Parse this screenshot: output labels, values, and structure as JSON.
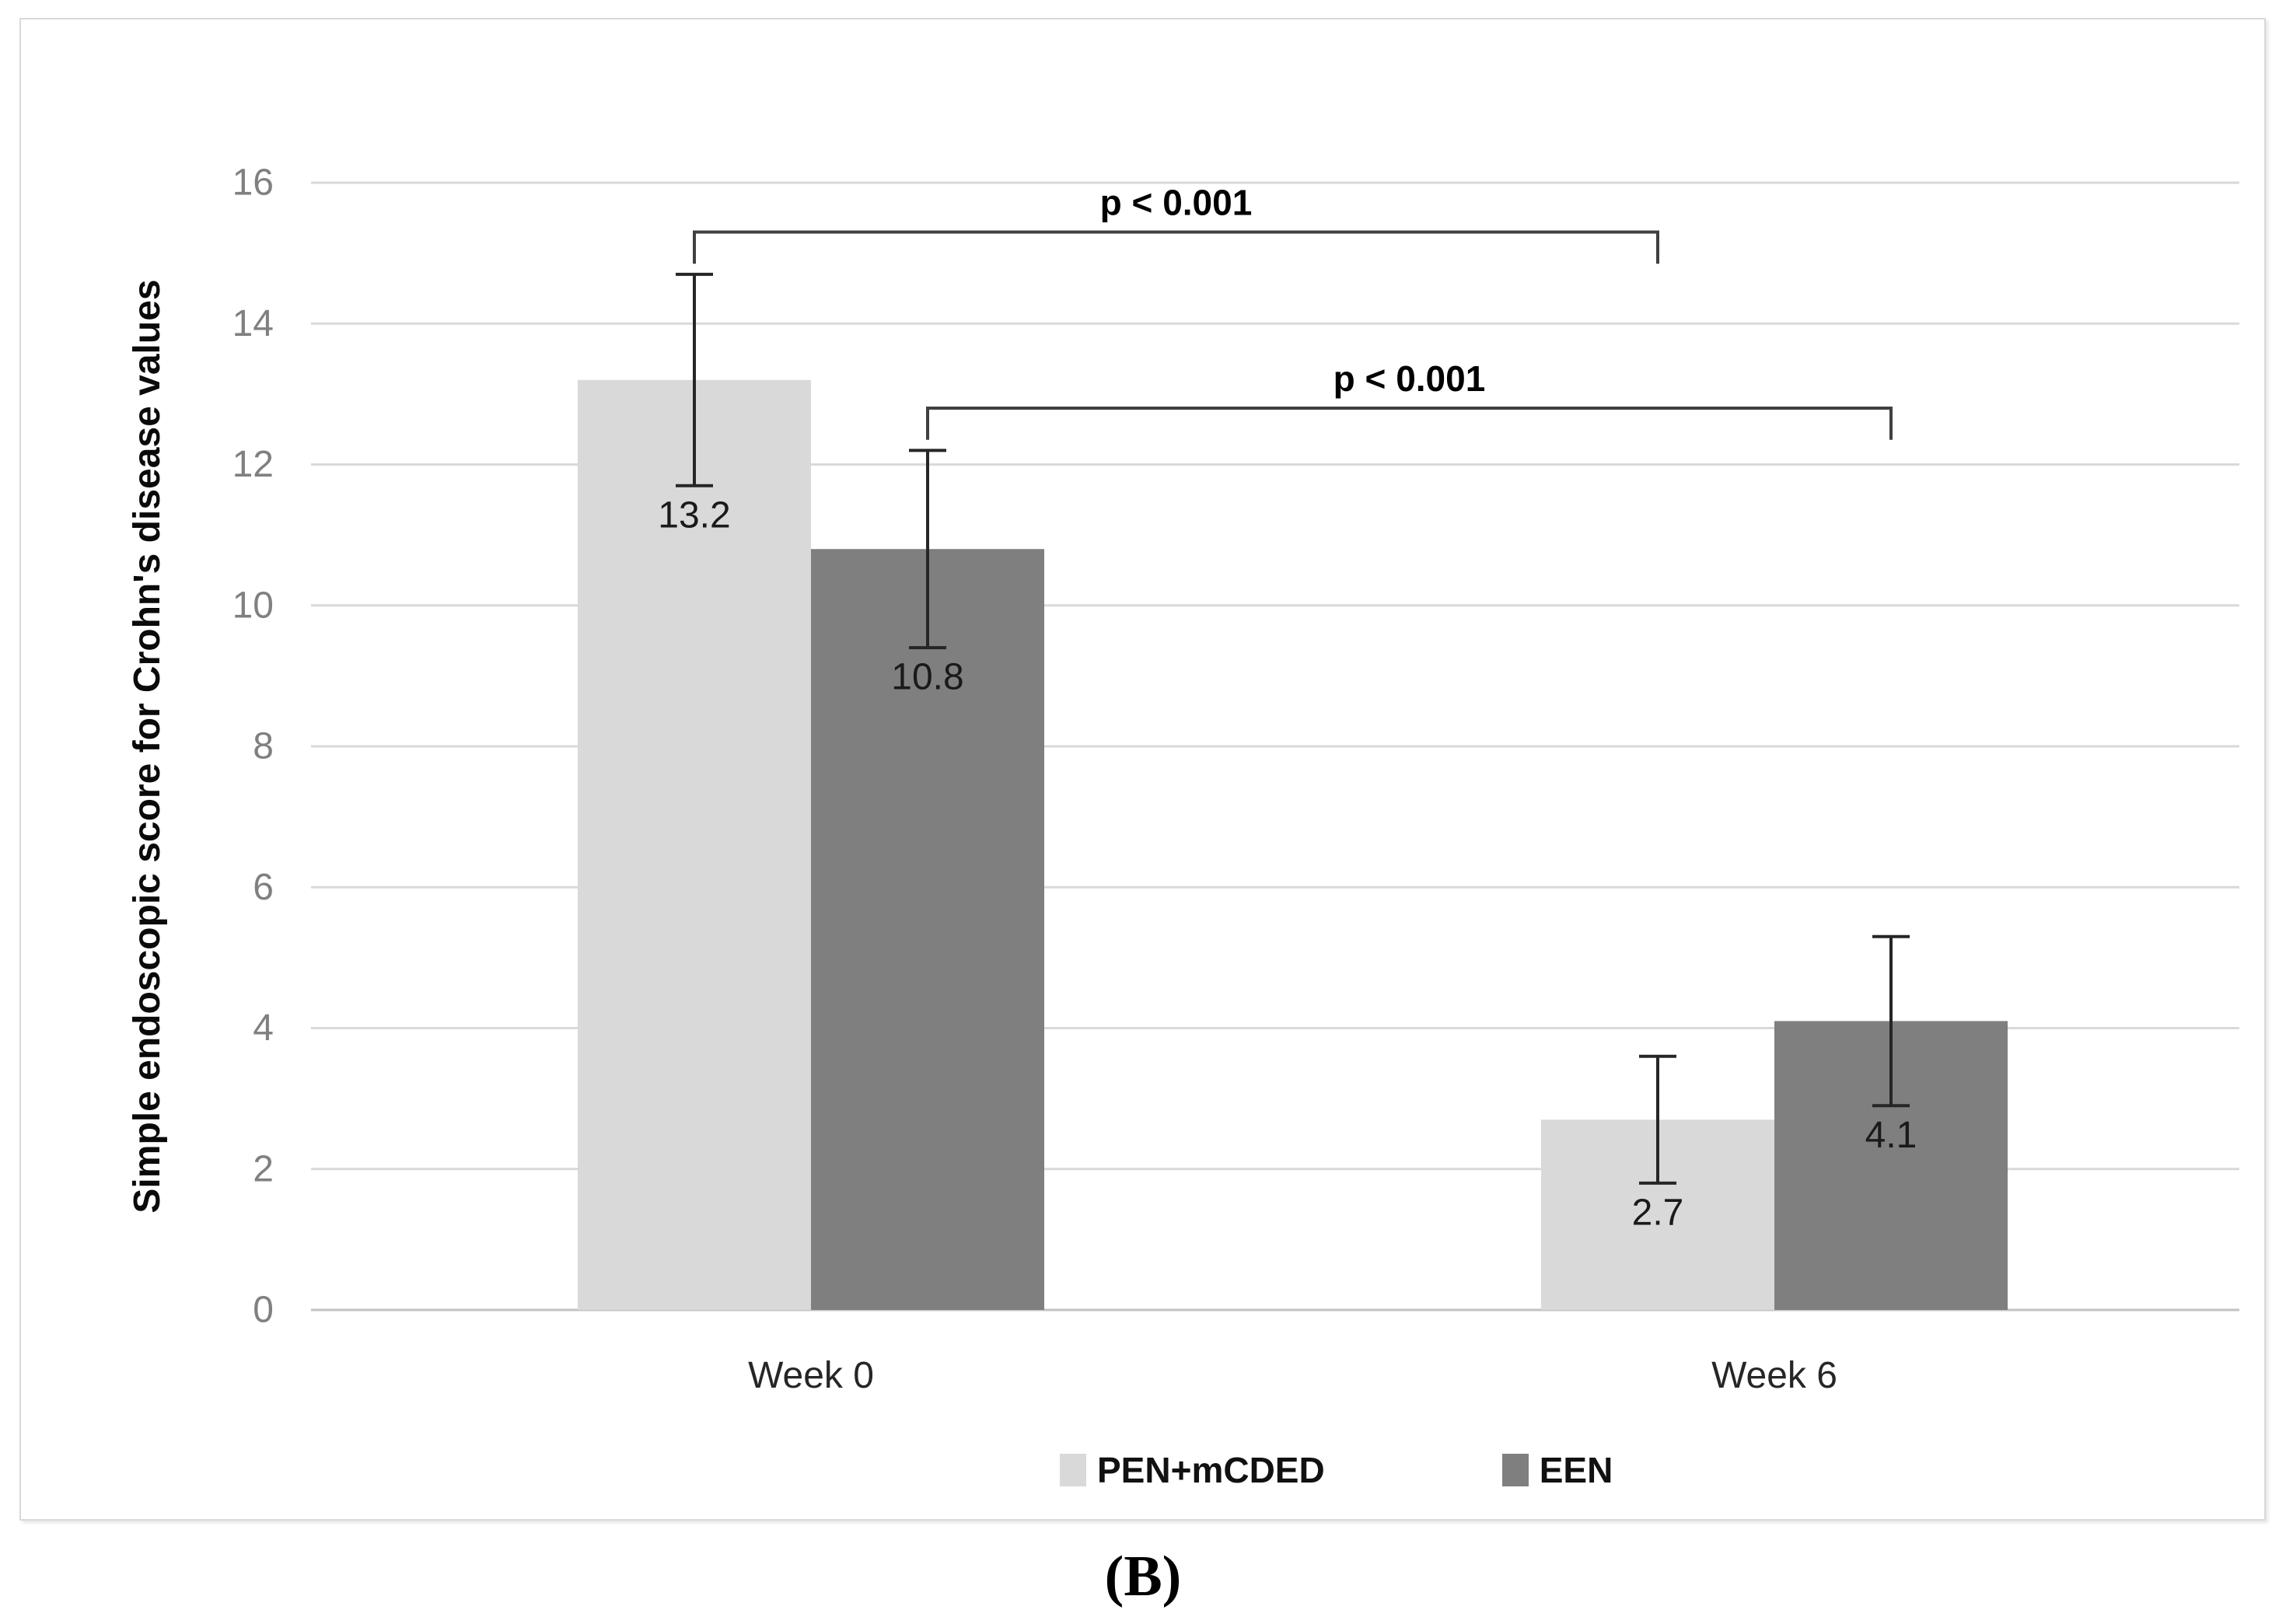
{
  "figure": {
    "caption": "(B)"
  },
  "chart_data": {
    "type": "bar",
    "title": "",
    "xlabel": "",
    "ylabel": "Simple endoscopic score for Crohn's disease values",
    "ylim": [
      0,
      16
    ],
    "yticks": [
      0,
      2,
      4,
      6,
      8,
      10,
      12,
      14,
      16
    ],
    "grid": true,
    "legend_position": "bottom",
    "categories": [
      "Week 0",
      "Week 6"
    ],
    "series": [
      {
        "name": "PEN+mCDED",
        "color": "#d9d9d9",
        "values": [
          13.2,
          2.7
        ],
        "labels": [
          "13.2",
          "2.7"
        ],
        "error_low": [
          11.7,
          1.8
        ],
        "error_high": [
          14.7,
          3.6
        ]
      },
      {
        "name": "EEN",
        "color": "#7f7f7f",
        "values": [
          10.8,
          4.1
        ],
        "labels": [
          "10.8",
          "4.1"
        ],
        "error_low": [
          9.4,
          2.9
        ],
        "error_high": [
          12.2,
          5.3
        ]
      }
    ],
    "annotations": [
      {
        "text": "p < 0.001",
        "series": "PEN+mCDED",
        "from_category": "Week 0",
        "to_category": "Week 6",
        "line_value": 15.3
      },
      {
        "text": "p < 0.001",
        "series": "EEN",
        "from_category": "Week 0",
        "to_category": "Week 6",
        "line_value": 12.8
      }
    ],
    "colors": {
      "grid": "#d9d9d9",
      "baseline": "#c2c2c2",
      "tick_text": "#808080",
      "category_text": "#262626",
      "value_text": "#1a1a1a",
      "error_bar": "#262626",
      "bracket": "#404040",
      "legend_text": "#111111",
      "frame_border": "#d9d9d9",
      "background": "#ffffff"
    }
  }
}
